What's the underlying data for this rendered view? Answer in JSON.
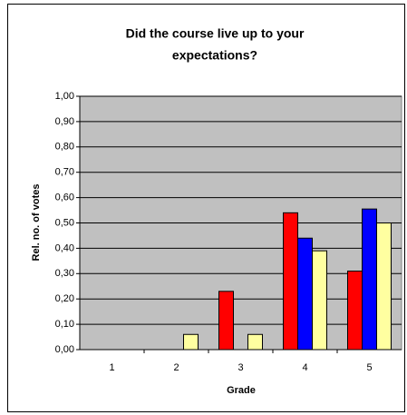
{
  "chart_data": {
    "type": "bar",
    "title": [
      "Did the course live up to your",
      "expectations?"
    ],
    "x_label": "Grade",
    "y_label": "Rel. no. of votes",
    "categories": [
      "1",
      "2",
      "3",
      "4",
      "5"
    ],
    "series": [
      {
        "color": "#ff0000",
        "values": [
          0,
          0,
          0.23,
          0.54,
          0.31
        ]
      },
      {
        "color": "#0000ff",
        "values": [
          0,
          0,
          0,
          0.44,
          0.555
        ]
      },
      {
        "color": "#ffffa0",
        "values": [
          0,
          0.06,
          0.06,
          0.39,
          0.5
        ]
      }
    ],
    "ylim": [
      0,
      1
    ],
    "yticks": [
      {
        "value": 0,
        "label": "0,00"
      },
      {
        "value": 0.1,
        "label": "0,10"
      },
      {
        "value": 0.2,
        "label": "0,20"
      },
      {
        "value": 0.3,
        "label": "0,30"
      },
      {
        "value": 0.4,
        "label": "0,40"
      },
      {
        "value": 0.5,
        "label": "0,50"
      },
      {
        "value": 0.6,
        "label": "0,60"
      },
      {
        "value": 0.7,
        "label": "0,70"
      },
      {
        "value": 0.8,
        "label": "0,80"
      },
      {
        "value": 0.9,
        "label": "0,90"
      },
      {
        "value": 1,
        "label": "1,00"
      }
    ],
    "grid": true
  }
}
